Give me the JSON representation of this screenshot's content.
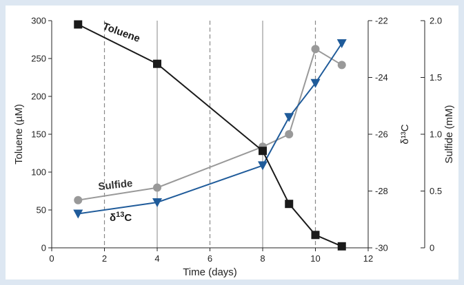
{
  "chart_data": {
    "type": "line",
    "xlabel": "Time (days)",
    "x_ticks": [
      "0",
      "2",
      "4",
      "6",
      "8",
      "10",
      "12"
    ],
    "xlim": [
      0,
      12
    ],
    "y_axes": {
      "left": {
        "label": "Toluene (µM)",
        "ylim": [
          0,
          300
        ],
        "ticks": [
          "0",
          "50",
          "100",
          "150",
          "200",
          "250",
          "300"
        ]
      },
      "middle": {
        "label": "δ¹³C",
        "ylim": [
          -30,
          -22
        ],
        "ticks": [
          "-30",
          "-28",
          "-26",
          "-24",
          "-22"
        ]
      },
      "right": {
        "label": "Sulfide (mM)",
        "ylim": [
          0,
          2.0
        ],
        "ticks": [
          "0",
          "0.5",
          "1.0",
          "1.5",
          "2.0"
        ]
      }
    },
    "vertical_lines": {
      "solid": [
        4,
        8
      ],
      "dashed": [
        2,
        6,
        10
      ]
    },
    "series": [
      {
        "name": "Toluene",
        "axis": "left",
        "marker": "square",
        "color": "#1a1a1a",
        "x": [
          1,
          4,
          8,
          9,
          10,
          11
        ],
        "y": [
          295,
          243,
          128,
          58,
          17,
          2
        ]
      },
      {
        "name": "Sulfide",
        "axis": "right",
        "marker": "circle",
        "color": "#999999",
        "x": [
          1,
          4,
          8,
          9,
          10,
          11
        ],
        "y": [
          0.42,
          0.53,
          0.89,
          1.0,
          1.75,
          1.61
        ]
      },
      {
        "name": "δ13C",
        "axis": "middle",
        "marker": "triangle-down",
        "color": "#1f5b9a",
        "x": [
          1,
          4,
          8,
          9,
          10,
          11
        ],
        "y": [
          -28.8,
          -28.4,
          -27.1,
          -25.4,
          -24.2,
          -22.8
        ]
      }
    ]
  }
}
